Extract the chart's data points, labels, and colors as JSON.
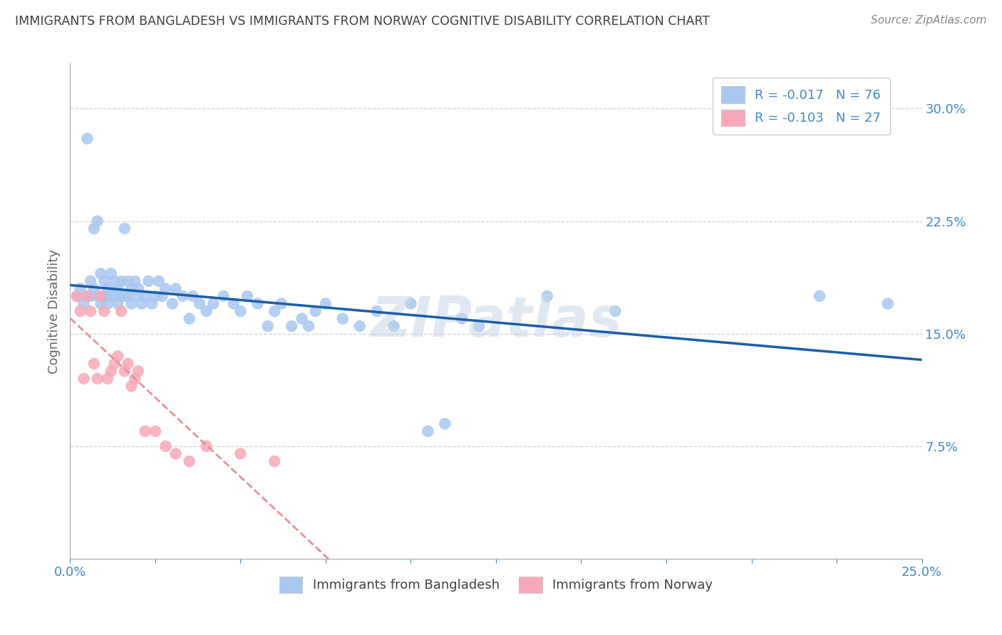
{
  "title": "IMMIGRANTS FROM BANGLADESH VS IMMIGRANTS FROM NORWAY COGNITIVE DISABILITY CORRELATION CHART",
  "source": "Source: ZipAtlas.com",
  "ylabel": "Cognitive Disability",
  "ytick_labels": [
    "",
    "7.5%",
    "15.0%",
    "22.5%",
    "30.0%"
  ],
  "ytick_values": [
    0.0,
    0.075,
    0.15,
    0.225,
    0.3
  ],
  "xtick_labels": [
    "0.0%",
    "",
    "",
    "",
    "",
    "",
    "",
    "",
    "",
    "25.0%"
  ],
  "xtick_values": [
    0.0,
    0.025,
    0.05,
    0.075,
    0.1,
    0.125,
    0.15,
    0.175,
    0.2,
    0.25
  ],
  "xlim": [
    0.0,
    0.25
  ],
  "ylim": [
    0.0,
    0.33
  ],
  "color_bangladesh": "#a8c8f0",
  "color_norway": "#f8a8b8",
  "trendline_bangladesh_color": "#1a5fa8",
  "trendline_norway_color": "#e8909a",
  "background_color": "#ffffff",
  "grid_color": "#cccccc",
  "title_color": "#404040",
  "axis_label_color": "#4488cc",
  "watermark_color": "#c8d8e8",
  "legend_label1": "Immigrants from Bangladesh",
  "legend_label2": "Immigrants from Norway",
  "bd_x": [
    0.002,
    0.003,
    0.004,
    0.005,
    0.005,
    0.006,
    0.006,
    0.007,
    0.007,
    0.008,
    0.008,
    0.009,
    0.009,
    0.01,
    0.01,
    0.011,
    0.011,
    0.012,
    0.012,
    0.013,
    0.013,
    0.014,
    0.014,
    0.015,
    0.015,
    0.016,
    0.016,
    0.017,
    0.017,
    0.018,
    0.018,
    0.019,
    0.02,
    0.02,
    0.021,
    0.022,
    0.023,
    0.024,
    0.025,
    0.026,
    0.027,
    0.028,
    0.03,
    0.031,
    0.033,
    0.035,
    0.036,
    0.038,
    0.04,
    0.042,
    0.045,
    0.048,
    0.05,
    0.052,
    0.055,
    0.058,
    0.06,
    0.062,
    0.065,
    0.068,
    0.07,
    0.072,
    0.075,
    0.08,
    0.085,
    0.09,
    0.095,
    0.1,
    0.105,
    0.11,
    0.14,
    0.16,
    0.22,
    0.24,
    0.115,
    0.12
  ],
  "bd_y": [
    0.175,
    0.18,
    0.17,
    0.28,
    0.175,
    0.185,
    0.175,
    0.18,
    0.22,
    0.225,
    0.175,
    0.19,
    0.17,
    0.185,
    0.175,
    0.18,
    0.17,
    0.19,
    0.175,
    0.185,
    0.175,
    0.18,
    0.17,
    0.185,
    0.175,
    0.22,
    0.175,
    0.185,
    0.175,
    0.18,
    0.17,
    0.185,
    0.175,
    0.18,
    0.17,
    0.175,
    0.185,
    0.17,
    0.175,
    0.185,
    0.175,
    0.18,
    0.17,
    0.18,
    0.175,
    0.16,
    0.175,
    0.17,
    0.165,
    0.17,
    0.175,
    0.17,
    0.165,
    0.175,
    0.17,
    0.155,
    0.165,
    0.17,
    0.155,
    0.16,
    0.155,
    0.165,
    0.17,
    0.16,
    0.155,
    0.165,
    0.155,
    0.17,
    0.085,
    0.09,
    0.175,
    0.165,
    0.175,
    0.17,
    0.16,
    0.155
  ],
  "no_x": [
    0.002,
    0.003,
    0.004,
    0.005,
    0.006,
    0.007,
    0.008,
    0.009,
    0.01,
    0.011,
    0.012,
    0.013,
    0.014,
    0.015,
    0.016,
    0.017,
    0.018,
    0.019,
    0.02,
    0.022,
    0.025,
    0.028,
    0.031,
    0.035,
    0.04,
    0.05,
    0.06
  ],
  "no_y": [
    0.175,
    0.165,
    0.12,
    0.175,
    0.165,
    0.13,
    0.12,
    0.175,
    0.165,
    0.12,
    0.125,
    0.13,
    0.135,
    0.165,
    0.125,
    0.13,
    0.115,
    0.12,
    0.125,
    0.085,
    0.085,
    0.075,
    0.07,
    0.065,
    0.075,
    0.07,
    0.065
  ]
}
